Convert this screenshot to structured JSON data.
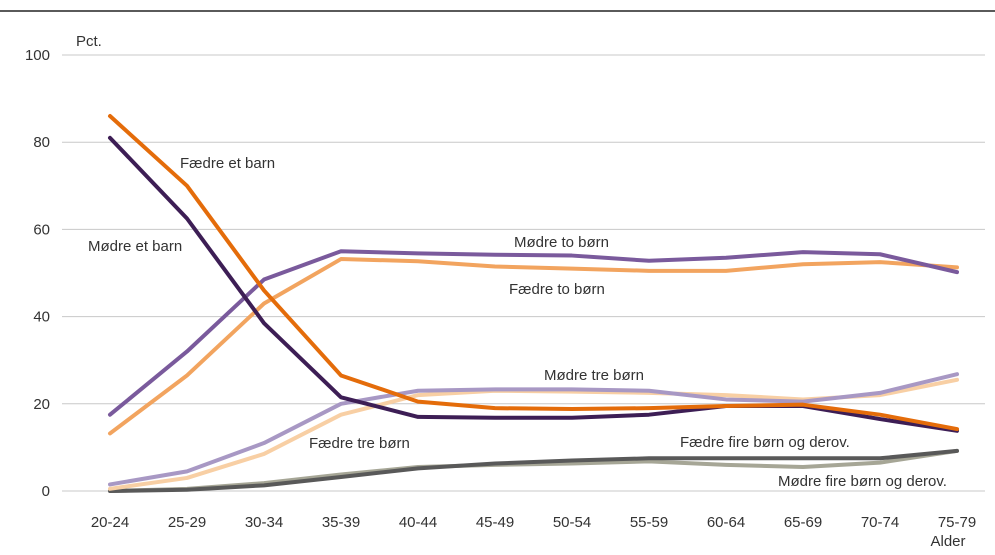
{
  "chart_data": {
    "type": "line",
    "title": "",
    "ylabel": "Pct.",
    "xlabel": "Alder",
    "ylim": [
      0,
      100
    ],
    "yticks": [
      "0",
      "20",
      "40",
      "60",
      "80",
      "100"
    ],
    "grid": true,
    "categories": [
      "20-24",
      "25-29",
      "30-34",
      "35-39",
      "40-44",
      "45-49",
      "50-54",
      "55-59",
      "60-64",
      "65-69",
      "70-74",
      "75-79"
    ],
    "series": [
      {
        "name": "Fædre et barn",
        "color": "#E46C0A",
        "values": [
          86,
          70,
          46,
          26.5,
          20.5,
          19,
          18.8,
          19,
          19.5,
          19.8,
          17.5,
          14.2
        ]
      },
      {
        "name": "Mødre et barn",
        "color": "#3D1E55",
        "values": [
          81,
          62.5,
          38.5,
          21.5,
          17,
          16.8,
          16.8,
          17.5,
          19.5,
          19.5,
          16.5,
          13.8
        ]
      },
      {
        "name": "Mødre to børn",
        "color": "#7A5A9C",
        "values": [
          17.5,
          32,
          48.5,
          55,
          54.5,
          54.2,
          54,
          52.8,
          53.5,
          54.8,
          54.3,
          50.2
        ]
      },
      {
        "name": "Fædre to børn",
        "color": "#F2A45F",
        "values": [
          13.2,
          26.5,
          43,
          53.2,
          52.7,
          51.5,
          51,
          50.5,
          50.5,
          52,
          52.5,
          51.3
        ]
      },
      {
        "name": "Mødre tre børn",
        "color": "#A898C4",
        "values": [
          1.5,
          4.5,
          11,
          20,
          23,
          23.3,
          23.3,
          23,
          21,
          20.5,
          22.5,
          26.8
        ]
      },
      {
        "name": "Fædre tre børn",
        "color": "#F8CFA4",
        "values": [
          0.5,
          3,
          8.5,
          17.5,
          22,
          23,
          22.8,
          22.5,
          22,
          21,
          22,
          25.5
        ]
      },
      {
        "name": "Fædre fire børn og derov.",
        "color": "#595959",
        "values": [
          0,
          0.3,
          1.3,
          3.2,
          5.2,
          6.3,
          7,
          7.5,
          7.5,
          7.5,
          7.5,
          9.2
        ]
      },
      {
        "name": "Mødre fire børn og derov.",
        "color": "#A6A696",
        "values": [
          0,
          0.5,
          1.8,
          3.8,
          5.5,
          6,
          6.3,
          6.8,
          6,
          5.5,
          6.5,
          9.2
        ]
      }
    ]
  }
}
